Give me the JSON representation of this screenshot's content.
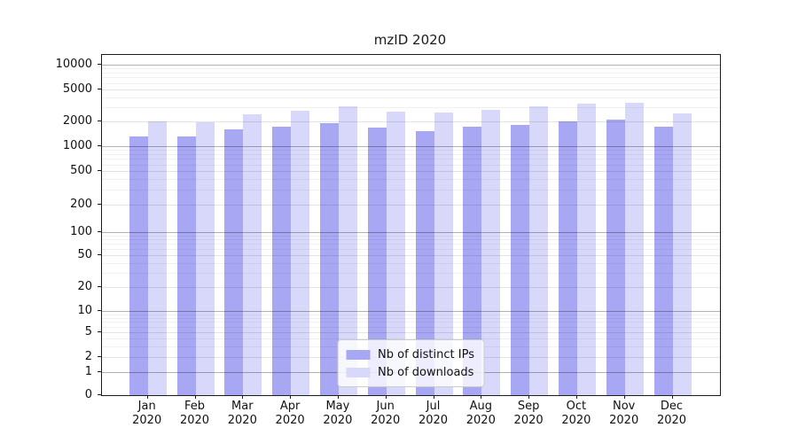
{
  "chart_data": {
    "type": "bar",
    "title": "mzID 2020",
    "categories": [
      "Jan 2020",
      "Feb 2020",
      "Mar 2020",
      "Apr 2020",
      "May 2020",
      "Jun 2020",
      "Jul 2020",
      "Aug 2020",
      "Sep 2020",
      "Oct 2020",
      "Nov 2020",
      "Dec 2020"
    ],
    "series": [
      {
        "name": "Nb of distinct IPs",
        "color": "#a7a7f3",
        "values": [
          1310,
          1330,
          1600,
          1710,
          1900,
          1700,
          1510,
          1740,
          1800,
          1980,
          2090,
          1730
        ]
      },
      {
        "name": "Nb of downloads",
        "color": "#d8d8fa",
        "values": [
          1990,
          1950,
          2430,
          2750,
          3050,
          2650,
          2580,
          2800,
          3050,
          3300,
          3400,
          2500
        ]
      }
    ],
    "y_axis": {
      "scale": "symlog",
      "ticks": [
        0,
        1,
        2,
        5,
        10,
        20,
        50,
        100,
        200,
        500,
        1000,
        2000,
        5000,
        10000
      ],
      "max": 10000
    },
    "grid": true,
    "legend_position": "lower center"
  }
}
